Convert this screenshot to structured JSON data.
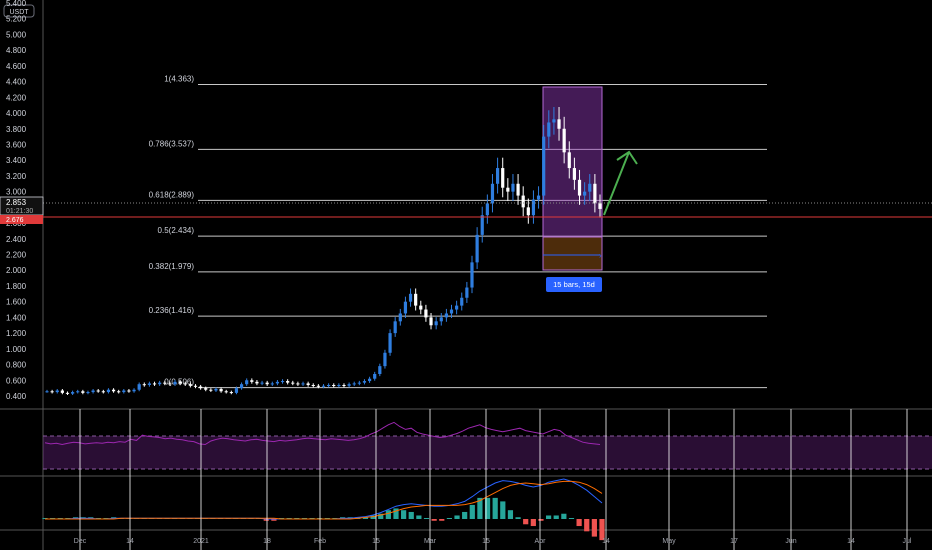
{
  "currency_label": "USDT",
  "colors": {
    "background": "#000000",
    "up_candle": "#2f7ee0",
    "down_candle": "#ffffff",
    "fib_line": "#c8c8c8",
    "current_price": "#e03a3a",
    "rsi": "#9c27b0",
    "macd_line": "#2962ff",
    "signal_line": "#ff6d00",
    "hist_up": "#26a69a",
    "hist_down": "#ef5350",
    "arrow": "#4caf50",
    "measure": "#2962ff"
  },
  "price_axis": {
    "ticks": [
      "5.400",
      "5.200",
      "5.000",
      "4.800",
      "4.600",
      "4.400",
      "4.200",
      "4.000",
      "3.800",
      "3.600",
      "3.400",
      "3.200",
      "3.000",
      "2.800",
      "2.600",
      "2.400",
      "2.200",
      "2.000",
      "1.800",
      "1.600",
      "1.400",
      "1.200",
      "1.000",
      "0.800",
      "0.600",
      "0.400"
    ],
    "last_price": "2.853",
    "countdown": "01:21:30",
    "current_level": "2.676"
  },
  "time_axis": {
    "labels": [
      "Dec",
      "14",
      "2021",
      "18",
      "Feb",
      "15",
      "Mar",
      "15",
      "Apr",
      "14",
      "May",
      "17",
      "Jun",
      "14",
      "Jul"
    ]
  },
  "measure_label": "15 bars, 15d",
  "chart_data": {
    "type": "candlestick",
    "y_range": [
      0.3,
      5.4
    ],
    "fib_levels": [
      {
        "label": "1(4.363)",
        "value": 4.363
      },
      {
        "label": "0.786(3.537)",
        "value": 3.537
      },
      {
        "label": "0.618(2.889)",
        "value": 2.889
      },
      {
        "label": "0.5(2.434)",
        "value": 2.434
      },
      {
        "label": "0.382(1.979)",
        "value": 1.979
      },
      {
        "label": "0.236(1.416)",
        "value": 1.416
      },
      {
        "label": "0(0.506)",
        "value": 0.506
      }
    ],
    "closes": [
      0.46,
      0.45,
      0.47,
      0.44,
      0.43,
      0.45,
      0.46,
      0.44,
      0.45,
      0.47,
      0.46,
      0.45,
      0.48,
      0.46,
      0.45,
      0.47,
      0.46,
      0.48,
      0.55,
      0.54,
      0.56,
      0.55,
      0.57,
      0.56,
      0.55,
      0.58,
      0.56,
      0.55,
      0.53,
      0.52,
      0.5,
      0.48,
      0.47,
      0.49,
      0.46,
      0.45,
      0.44,
      0.5,
      0.55,
      0.6,
      0.58,
      0.56,
      0.57,
      0.55,
      0.56,
      0.58,
      0.59,
      0.57,
      0.56,
      0.55,
      0.56,
      0.54,
      0.53,
      0.52,
      0.53,
      0.54,
      0.53,
      0.54,
      0.53,
      0.55,
      0.56,
      0.57,
      0.59,
      0.62,
      0.68,
      0.78,
      0.95,
      1.2,
      1.35,
      1.45,
      1.6,
      1.7,
      1.55,
      1.5,
      1.4,
      1.3,
      1.35,
      1.4,
      1.45,
      1.5,
      1.55,
      1.65,
      1.78,
      2.1,
      2.45,
      2.7,
      2.85,
      3.1,
      3.3,
      3.05,
      3.0,
      3.1,
      2.95,
      2.8,
      2.7,
      2.9,
      2.95,
      3.7,
      3.88,
      3.92,
      3.8,
      3.5,
      3.3,
      3.15,
      2.95,
      3.0,
      3.1,
      2.85,
      2.78
    ]
  },
  "rsi": {
    "values": [
      47,
      45,
      46,
      44,
      46,
      48,
      47,
      45,
      46,
      47,
      46,
      48,
      47,
      49,
      48,
      53,
      51,
      60,
      58,
      57,
      56,
      54,
      55,
      53,
      52,
      50,
      49,
      45,
      44,
      50,
      53,
      55,
      54,
      52,
      51,
      50,
      52,
      53,
      51,
      50,
      49,
      51,
      50,
      51,
      52,
      54,
      55,
      54,
      53,
      52,
      54,
      53,
      52,
      51,
      52,
      54,
      57,
      62,
      66,
      72,
      78,
      82,
      75,
      70,
      72,
      65,
      62,
      60,
      58,
      56,
      57,
      60,
      63,
      67,
      72,
      75,
      78,
      73,
      70,
      68,
      66,
      68,
      70,
      72,
      68,
      66,
      64,
      62,
      66,
      70,
      68,
      60,
      56,
      52,
      48,
      46,
      45,
      44
    ]
  },
  "macd": {
    "macd_line": [
      0,
      0,
      0,
      0,
      0.01,
      0.01,
      0.01,
      0,
      0,
      0.01,
      0.01,
      0.01,
      0.01,
      0.01,
      0.01,
      0.01,
      0.01,
      0.01,
      0.01,
      0.01,
      0.01,
      0.01,
      0.01,
      0.01,
      0.01,
      0.01,
      0.01,
      0.01,
      0.01,
      0,
      0,
      0,
      0,
      0,
      0,
      0,
      0,
      0,
      0,
      0.01,
      0.01,
      0.02,
      0.03,
      0.05,
      0.08,
      0.12,
      0.16,
      0.18,
      0.19,
      0.18,
      0.17,
      0.16,
      0.16,
      0.17,
      0.19,
      0.22,
      0.28,
      0.35,
      0.4,
      0.45,
      0.48,
      0.47,
      0.45,
      0.42,
      0.4,
      0.42,
      0.46,
      0.48,
      0.5,
      0.47,
      0.42,
      0.36,
      0.28,
      0.2
    ],
    "signal_line": [
      0,
      0,
      0,
      0,
      0,
      0,
      0,
      0,
      0,
      0,
      0.01,
      0.01,
      0.01,
      0.01,
      0.01,
      0.01,
      0.01,
      0.01,
      0.01,
      0.01,
      0.01,
      0.01,
      0.01,
      0.01,
      0.01,
      0.01,
      0.01,
      0.01,
      0.01,
      0.01,
      0.01,
      0,
      0,
      0,
      0,
      0,
      0,
      0,
      0,
      0,
      0,
      0.01,
      0.02,
      0.03,
      0.05,
      0.07,
      0.1,
      0.13,
      0.15,
      0.16,
      0.17,
      0.17,
      0.17,
      0.17,
      0.17,
      0.18,
      0.2,
      0.23,
      0.28,
      0.33,
      0.38,
      0.42,
      0.44,
      0.45,
      0.44,
      0.43,
      0.44,
      0.46,
      0.47,
      0.47,
      0.46,
      0.43,
      0.38,
      0.32
    ]
  }
}
